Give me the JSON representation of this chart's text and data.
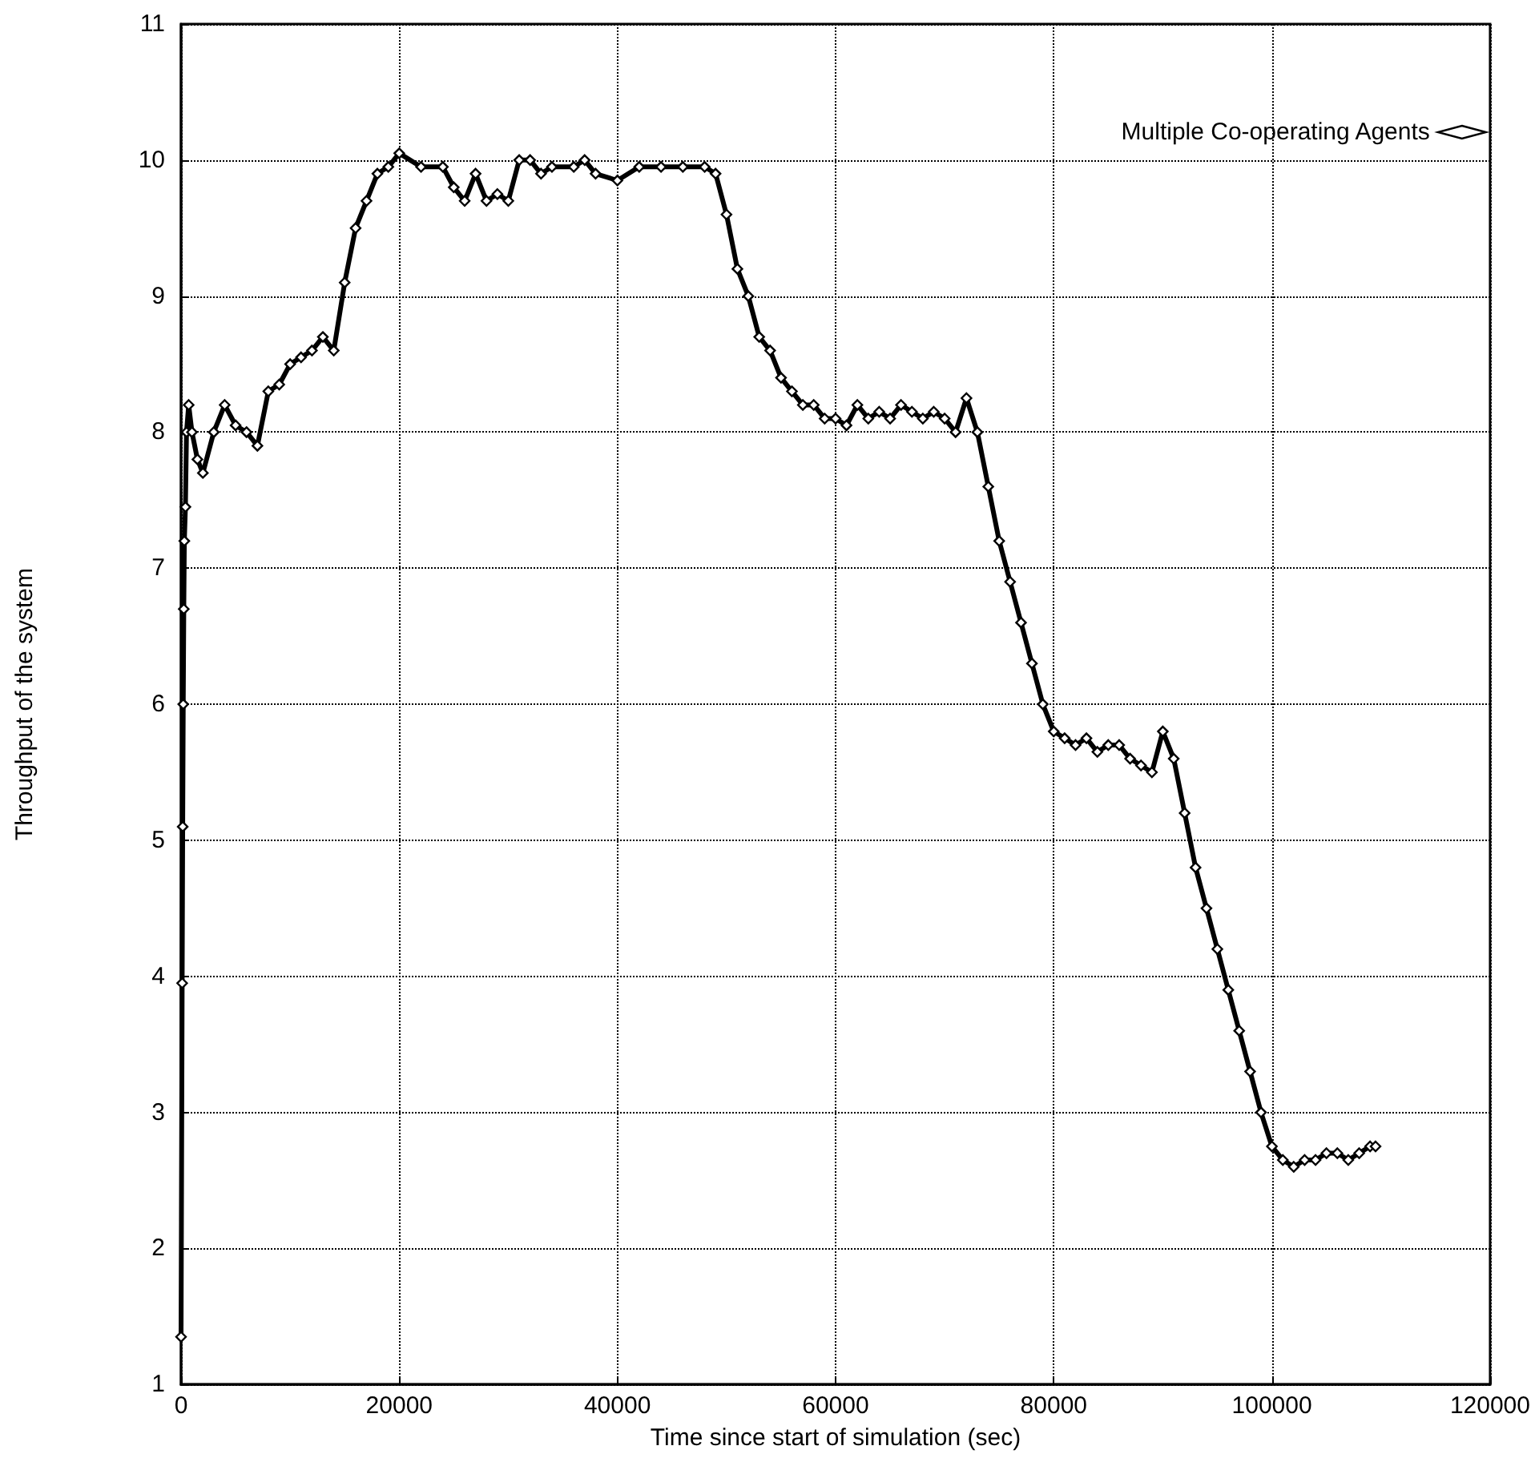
{
  "chart_data": {
    "type": "line",
    "xlabel": "Time since start of simulation (sec)",
    "ylabel": "Throughput of the system",
    "xlim": [
      0,
      120000
    ],
    "xticks": [
      0,
      20000,
      40000,
      60000,
      80000,
      100000,
      120000
    ],
    "ylim": [
      1,
      11
    ],
    "yticks": [
      1,
      2,
      3,
      4,
      5,
      6,
      7,
      8,
      9,
      10,
      11
    ],
    "grid": true,
    "legend": "top right",
    "marker": "diamond",
    "line_style": "solid",
    "series": [
      {
        "name": "Multiple Co-operating Agents",
        "color": "#000000",
        "x": [
          0,
          100,
          150,
          200,
          250,
          300,
          400,
          500,
          700,
          1000,
          1500,
          2000,
          3000,
          4000,
          5000,
          6000,
          7000,
          8000,
          9000,
          10000,
          11000,
          12000,
          13000,
          14000,
          15000,
          16000,
          17000,
          18000,
          19000,
          20000,
          22000,
          24000,
          25000,
          26000,
          27000,
          28000,
          29000,
          30000,
          31000,
          32000,
          33000,
          34000,
          36000,
          37000,
          38000,
          40000,
          42000,
          44000,
          46000,
          48000,
          49000,
          50000,
          51000,
          52000,
          53000,
          54000,
          55000,
          56000,
          57000,
          58000,
          59000,
          60000,
          61000,
          62000,
          63000,
          64000,
          65000,
          66000,
          67000,
          68000,
          69000,
          70000,
          71000,
          72000,
          73000,
          74000,
          75000,
          76000,
          77000,
          78000,
          79000,
          80000,
          81000,
          82000,
          83000,
          84000,
          85000,
          86000,
          87000,
          88000,
          89000,
          90000,
          91000,
          92000,
          93000,
          94000,
          95000,
          96000,
          97000,
          98000,
          99000,
          100000,
          101000,
          102000,
          103000,
          104000,
          105000,
          106000,
          107000,
          108000,
          109000,
          109500
        ],
        "values": [
          1.35,
          3.95,
          5.1,
          6,
          6.7,
          7.2,
          7.45,
          8.0,
          8.2,
          8.0,
          7.8,
          7.7,
          8.0,
          8.2,
          8.05,
          8.0,
          7.9,
          8.3,
          8.35,
          8.5,
          8.55,
          8.6,
          8.7,
          8.6,
          9.1,
          9.5,
          9.7,
          9.9,
          9.95,
          10.05,
          9.95,
          9.95,
          9.8,
          9.7,
          9.9,
          9.7,
          9.75,
          9.7,
          10.0,
          10.0,
          9.9,
          9.95,
          9.95,
          10.0,
          9.9,
          9.85,
          9.95,
          9.95,
          9.95,
          9.95,
          9.9,
          9.6,
          9.2,
          9.0,
          8.7,
          8.6,
          8.4,
          8.3,
          8.2,
          8.2,
          8.1,
          8.1,
          8.05,
          8.2,
          8.1,
          8.15,
          8.1,
          8.2,
          8.15,
          8.1,
          8.15,
          8.1,
          8.0,
          8.25,
          8.0,
          7.6,
          7.2,
          6.9,
          6.6,
          6.3,
          6.0,
          5.8,
          5.75,
          5.7,
          5.75,
          5.65,
          5.7,
          5.7,
          5.6,
          5.55,
          5.5,
          5.8,
          5.6,
          5.2,
          4.8,
          4.5,
          4.2,
          3.9,
          3.6,
          3.3,
          3.0,
          2.75,
          2.65,
          2.6,
          2.65,
          2.65,
          2.7,
          2.7,
          2.65,
          2.7,
          2.75,
          2.75
        ]
      }
    ]
  }
}
